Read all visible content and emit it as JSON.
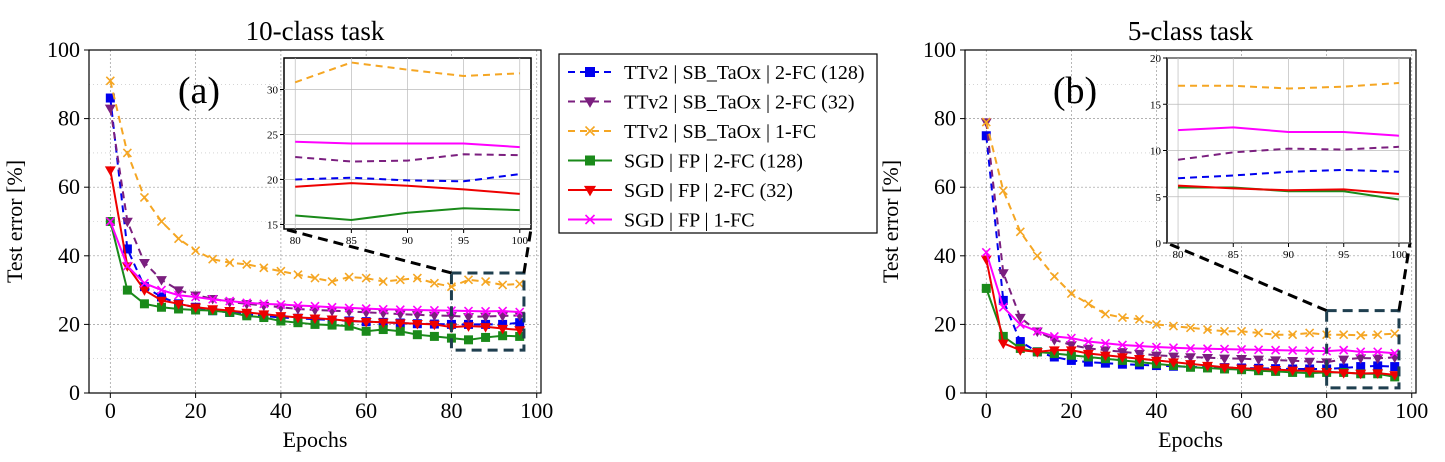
{
  "chart_data": [
    {
      "type": "line",
      "title": "10-class task",
      "panel_label": "(a)",
      "xlabel": "Epochs",
      "ylabel": "Test error [%]",
      "xlim": [
        -5,
        101
      ],
      "ylim": [
        0,
        100
      ],
      "xticks": [
        0,
        20,
        40,
        60,
        80,
        100
      ],
      "yticks": [
        0,
        20,
        40,
        60,
        80,
        100
      ],
      "grid": true,
      "x": [
        0,
        4,
        8,
        12,
        16,
        20,
        24,
        28,
        32,
        36,
        40,
        44,
        48,
        52,
        56,
        60,
        64,
        68,
        72,
        76,
        80,
        84,
        88,
        92,
        96
      ],
      "series": [
        {
          "name": "TTv2 | SB_TaOx | 2-FC (128)",
          "color": "#0000ee",
          "dash": true,
          "marker": "square",
          "values": [
            86,
            42,
            31,
            28,
            26,
            25,
            24,
            23.5,
            23,
            22.5,
            22,
            21.8,
            21.5,
            21.3,
            21,
            20.8,
            20.6,
            20.4,
            20.2,
            20.1,
            20,
            20,
            20,
            20,
            20.5
          ]
        },
        {
          "name": "TTv2 | SB_TaOx | 2-FC (32)",
          "color": "#7b1f7f",
          "dash": true,
          "marker": "tri-down",
          "values": [
            83,
            50,
            38,
            33,
            30,
            28.5,
            27.5,
            26.5,
            26,
            25.5,
            25,
            24.5,
            24.2,
            24,
            23.8,
            23.5,
            23.3,
            23,
            22.8,
            22.6,
            22.5,
            22.2,
            22.3,
            22.5,
            22.6
          ]
        },
        {
          "name": "TTv2 | SB_TaOx | 1-FC",
          "color": "#f5a623",
          "dash": true,
          "marker": "x",
          "values": [
            91,
            70,
            57,
            50,
            45,
            41.5,
            39,
            38,
            37.5,
            36.5,
            35.5,
            34.5,
            33.5,
            32.5,
            33.8,
            33.5,
            32.5,
            33,
            33.5,
            32,
            31,
            33,
            32.5,
            31.5,
            31.8
          ]
        },
        {
          "name": "SGD | FP | 2-FC (128)",
          "color": "#1a8a1a",
          "dash": false,
          "marker": "square",
          "values": [
            50,
            30,
            26,
            25,
            24.5,
            24.2,
            24,
            23.5,
            22.5,
            22,
            21,
            20.5,
            20,
            19.8,
            19.5,
            18,
            18.5,
            18,
            17,
            16.5,
            16,
            15.5,
            16.2,
            16.7,
            16.5
          ]
        },
        {
          "name": "SGD | FP | 2-FC (32)",
          "color": "#ee0000",
          "dash": false,
          "marker": "tri-down",
          "values": [
            65,
            37,
            30,
            27,
            26,
            25,
            24.5,
            24,
            23.5,
            23,
            22.5,
            22,
            21.8,
            21.5,
            21,
            20.8,
            20.6,
            20.4,
            20.2,
            20,
            19.2,
            19.5,
            19.3,
            18.8,
            18.4
          ]
        },
        {
          "name": "SGD | FP | 1-FC",
          "color": "#ff00ff",
          "dash": false,
          "marker": "x",
          "values": [
            50,
            37,
            32,
            30,
            28.5,
            28,
            27.3,
            26.8,
            26.3,
            26,
            25.8,
            25.5,
            25.3,
            25,
            24.8,
            24.6,
            24.4,
            24.3,
            24.2,
            24.1,
            24,
            23.9,
            23.8,
            23.9,
            23.6
          ]
        }
      ],
      "inset": {
        "xlim": [
          80,
          100
        ],
        "ylim": [
          14.5,
          33.5
        ],
        "xticks": [
          80,
          85,
          90,
          95,
          100
        ],
        "yticks": [
          15,
          20,
          25,
          30
        ],
        "x": [
          80,
          85,
          90,
          95,
          100
        ],
        "series_values": [
          [
            20.0,
            20.2,
            19.9,
            19.8,
            20.6
          ],
          [
            22.5,
            22.0,
            22.1,
            22.8,
            22.7
          ],
          [
            30.8,
            33.0,
            32.2,
            31.5,
            31.8
          ],
          [
            16.0,
            15.5,
            16.3,
            16.8,
            16.6
          ],
          [
            19.2,
            19.6,
            19.3,
            18.9,
            18.4
          ],
          [
            24.2,
            24.0,
            24.0,
            24.0,
            23.6
          ]
        ]
      }
    },
    {
      "type": "line",
      "title": "5-class task",
      "panel_label": "(b)",
      "xlabel": "Epochs",
      "ylabel": "Test error [%]",
      "xlim": [
        -5,
        101
      ],
      "ylim": [
        0,
        100
      ],
      "xticks": [
        0,
        20,
        40,
        60,
        80,
        100
      ],
      "yticks": [
        0,
        20,
        40,
        60,
        80,
        100
      ],
      "grid": true,
      "x": [
        0,
        4,
        8,
        12,
        16,
        20,
        24,
        28,
        32,
        36,
        40,
        44,
        48,
        52,
        56,
        60,
        64,
        68,
        72,
        76,
        80,
        84,
        88,
        92,
        96
      ],
      "series": [
        {
          "name": "TTv2 | SB_TaOx | 2-FC (128)",
          "color": "#0000ee",
          "dash": true,
          "marker": "square",
          "values": [
            75,
            27,
            15,
            12,
            10.5,
            9.5,
            9,
            8.7,
            8.4,
            8.2,
            8,
            7.8,
            7.6,
            7.5,
            7.4,
            7.3,
            7.2,
            7.1,
            7,
            7,
            7,
            7.3,
            7.7,
            7.9,
            7.7
          ]
        },
        {
          "name": "TTv2 | SB_TaOx | 2-FC (32)",
          "color": "#7b1f7f",
          "dash": true,
          "marker": "tri-down",
          "values": [
            79,
            35,
            22,
            18,
            15.5,
            14,
            13,
            12.5,
            12,
            11.5,
            11,
            10.7,
            10.5,
            10.3,
            10.1,
            10,
            9.8,
            9.6,
            9.4,
            9.2,
            9,
            9.8,
            10.2,
            10.1,
            10.4
          ]
        },
        {
          "name": "TTv2 | SB_TaOx | 1-FC",
          "color": "#f5a623",
          "dash": true,
          "marker": "x",
          "values": [
            79,
            59,
            47,
            40,
            34,
            29,
            26,
            23,
            22,
            21.5,
            20,
            19.5,
            19,
            18.5,
            18,
            18,
            17.5,
            17,
            17,
            17.5,
            17,
            17,
            16.8,
            17,
            17.3
          ]
        },
        {
          "name": "SGD | FP | 2-FC (128)",
          "color": "#1a8a1a",
          "dash": false,
          "marker": "square",
          "values": [
            30.5,
            16.5,
            13,
            12,
            11.5,
            11,
            10.5,
            10,
            9.5,
            9,
            8.5,
            8,
            7.5,
            7.3,
            7,
            6.8,
            6.5,
            6.3,
            6,
            5.8,
            6,
            6,
            5.6,
            5.6,
            4.7
          ]
        },
        {
          "name": "SGD | FP | 2-FC (32)",
          "color": "#ee0000",
          "dash": false,
          "marker": "tri-down",
          "values": [
            39,
            14.5,
            12.5,
            12,
            12.5,
            12.5,
            11.5,
            11,
            10.5,
            10,
            9.5,
            9,
            8.5,
            8,
            7.5,
            7.2,
            7,
            6.8,
            6.6,
            6.4,
            6.2,
            5.9,
            5.7,
            5.8,
            5.3
          ]
        },
        {
          "name": "SGD | FP | 1-FC",
          "color": "#ff00ff",
          "dash": false,
          "marker": "x",
          "values": [
            41,
            25,
            20,
            18,
            16.5,
            16,
            15,
            14.5,
            14,
            13.7,
            13.4,
            13.2,
            13,
            12.9,
            12.8,
            12.7,
            12.6,
            12.5,
            12.4,
            12.3,
            12.2,
            12.5,
            12,
            12,
            11.6
          ]
        }
      ],
      "inset": {
        "xlim": [
          80,
          100
        ],
        "ylim": [
          0,
          20
        ],
        "xticks": [
          80,
          85,
          90,
          95,
          100
        ],
        "yticks": [
          0,
          5,
          10,
          15,
          20
        ],
        "x": [
          80,
          85,
          90,
          95,
          100
        ],
        "series_values": [
          [
            7.0,
            7.3,
            7.7,
            7.9,
            7.7
          ],
          [
            9.0,
            9.8,
            10.2,
            10.1,
            10.4
          ],
          [
            17.0,
            17.0,
            16.7,
            16.9,
            17.3
          ],
          [
            6.0,
            6.0,
            5.6,
            5.6,
            4.7
          ],
          [
            6.2,
            5.9,
            5.7,
            5.8,
            5.3
          ],
          [
            12.2,
            12.5,
            12.0,
            12.0,
            11.6
          ]
        ]
      }
    }
  ],
  "legend": {
    "entries": [
      "TTv2 | SB_TaOx | 2-FC (128)",
      "TTv2 | SB_TaOx | 2-FC (32)",
      "TTv2 | SB_TaOx | 1-FC",
      "SGD | FP | 2-FC (128)",
      "SGD | FP | 2-FC (32)",
      "SGD | FP | 1-FC"
    ]
  }
}
